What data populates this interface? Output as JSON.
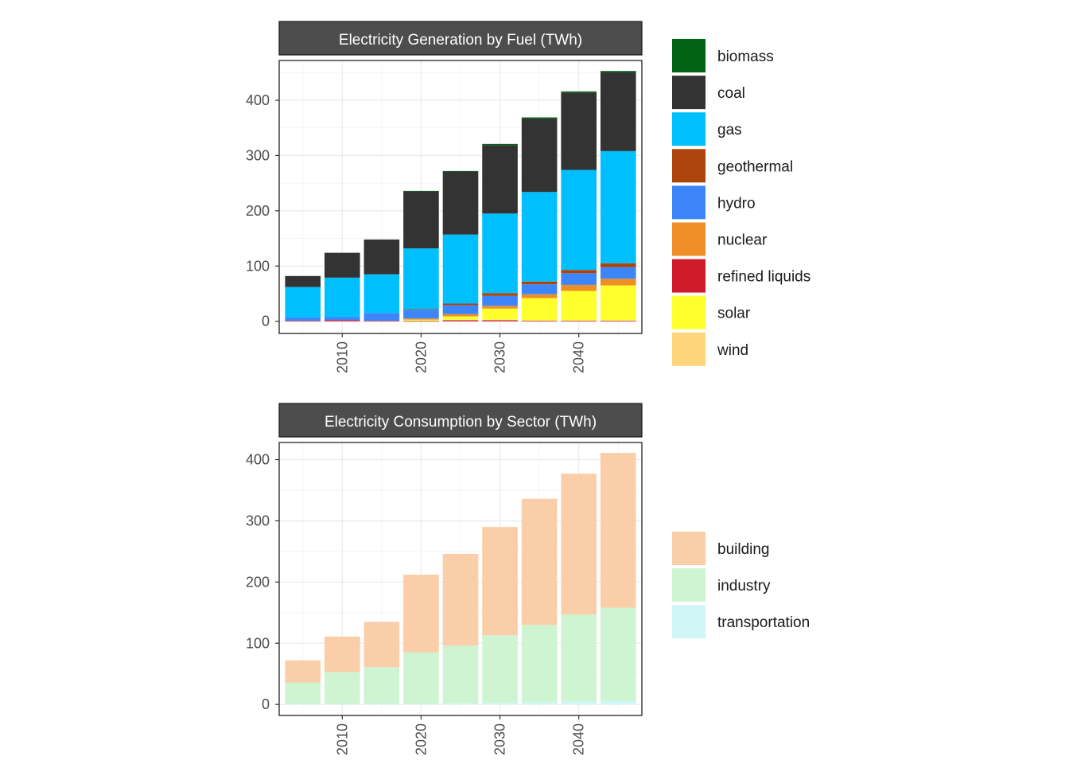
{
  "colors": {
    "biomass": "#006414",
    "coal": "#333333",
    "gas": "#00bfff",
    "geothermal": "#ad440c",
    "hydro": "#3d86f9",
    "nuclear": "#ef8e27",
    "refined liquids": "#d01c2a",
    "solar": "#ffff2b",
    "wind": "#fdd67b",
    "building": "#facea8",
    "industry": "#cef4d1",
    "transportation": "#d0f5f7",
    "strip_fill": "#4d4d4d",
    "grid": "#ebebeb"
  },
  "chart_data": [
    {
      "type": "bar",
      "stacked": true,
      "title": "Electricity Generation by Fuel (TWh)",
      "x": [
        2005,
        2010,
        2015,
        2020,
        2025,
        2030,
        2035,
        2040,
        2045
      ],
      "x_ticks": [
        "2010",
        "2020",
        "2030",
        "2040"
      ],
      "xlim": [
        2002,
        2048
      ],
      "y_ticks": [
        "0",
        "100",
        "200",
        "300",
        "400"
      ],
      "ylim": [
        -22,
        472
      ],
      "grid": true,
      "legend_position": "right",
      "series": [
        {
          "name": "refined liquids",
          "values": [
            1,
            2,
            1,
            1,
            2,
            2,
            1,
            1,
            1
          ]
        },
        {
          "name": "wind",
          "values": [
            0,
            0,
            0,
            0,
            1,
            1,
            1,
            1,
            1
          ]
        },
        {
          "name": "solar",
          "values": [
            0,
            0,
            0,
            2,
            6,
            20,
            40,
            53,
            63
          ]
        },
        {
          "name": "nuclear",
          "values": [
            0,
            0,
            0,
            2,
            4,
            5,
            7,
            11,
            12
          ]
        },
        {
          "name": "hydro",
          "values": [
            6,
            6,
            14,
            16,
            16,
            18,
            18,
            21,
            21
          ]
        },
        {
          "name": "geothermal",
          "values": [
            0,
            0,
            0,
            1,
            3,
            5,
            5,
            6,
            7
          ]
        },
        {
          "name": "gas",
          "values": [
            55,
            71,
            70,
            110,
            125,
            144,
            162,
            181,
            203
          ]
        },
        {
          "name": "coal",
          "values": [
            20,
            45,
            63,
            103,
            114,
            124,
            133,
            140,
            143
          ]
        },
        {
          "name": "biomass",
          "values": [
            0,
            0,
            0,
            1,
            1,
            2,
            2,
            2,
            2
          ]
        }
      ],
      "legend": [
        "biomass",
        "coal",
        "gas",
        "geothermal",
        "hydro",
        "nuclear",
        "refined liquids",
        "solar",
        "wind"
      ]
    },
    {
      "type": "bar",
      "stacked": true,
      "title": "Electricity Consumption by Sector (TWh)",
      "x": [
        2005,
        2010,
        2015,
        2020,
        2025,
        2030,
        2035,
        2040,
        2045
      ],
      "x_ticks": [
        "2010",
        "2020",
        "2030",
        "2040"
      ],
      "xlim": [
        2002,
        2048
      ],
      "y_ticks": [
        "0",
        "100",
        "200",
        "300",
        "400"
      ],
      "ylim": [
        -18,
        428
      ],
      "grid": true,
      "legend_position": "right",
      "series": [
        {
          "name": "transportation",
          "values": [
            1,
            1,
            1,
            1,
            2,
            3,
            4,
            5,
            6
          ]
        },
        {
          "name": "industry",
          "values": [
            35,
            52,
            60,
            84,
            94,
            110,
            126,
            142,
            152
          ]
        },
        {
          "name": "building",
          "values": [
            36,
            58,
            74,
            127,
            150,
            177,
            206,
            230,
            253
          ]
        }
      ],
      "legend": [
        "building",
        "industry",
        "transportation"
      ]
    }
  ]
}
